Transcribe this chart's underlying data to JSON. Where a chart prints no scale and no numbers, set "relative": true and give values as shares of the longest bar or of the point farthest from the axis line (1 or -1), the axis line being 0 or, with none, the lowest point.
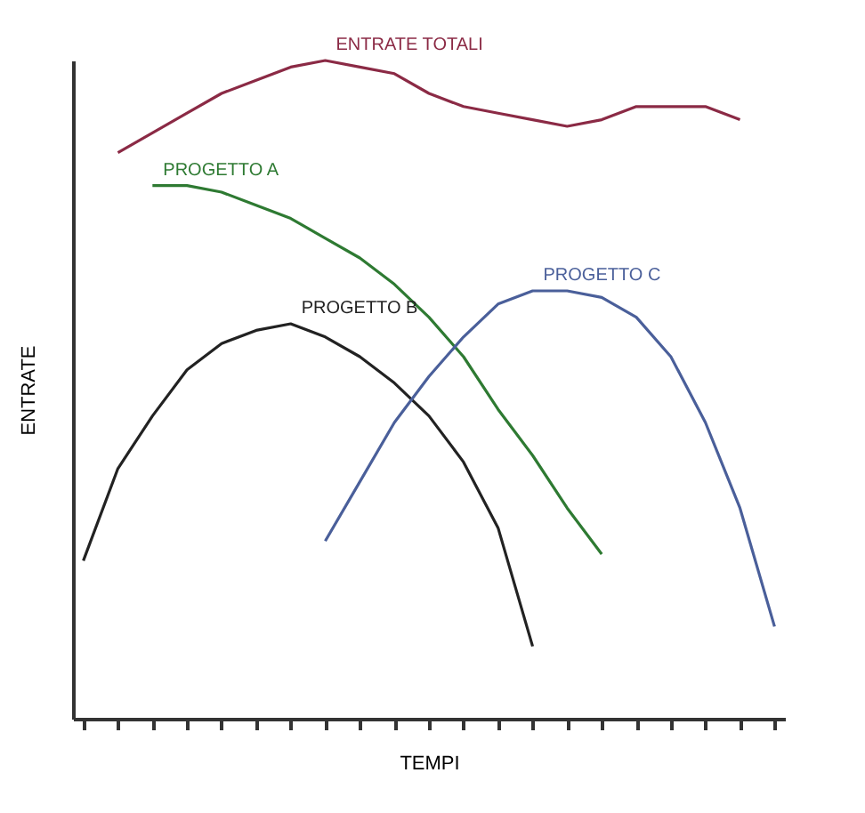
{
  "chart_data": {
    "type": "line",
    "relative": true,
    "xlabel": "TEMPI",
    "ylabel": "ENTRATE",
    "legend": false,
    "grid": false,
    "marker": "none",
    "line_style": "solid",
    "categories": [
      null,
      null,
      null,
      null,
      null,
      null,
      null,
      null,
      null,
      null,
      null,
      null,
      null,
      null,
      null,
      null,
      null,
      null,
      null,
      null,
      null
    ],
    "series": [
      {
        "name": "ENTRATE TOTALI",
        "color": "#8b2a45",
        "values": [
          null,
          0.86,
          0.89,
          0.92,
          0.95,
          0.97,
          0.99,
          1,
          0.99,
          0.98,
          0.95,
          0.93,
          0.92,
          0.91,
          0.9,
          0.91,
          0.93,
          0.93,
          0.93,
          0.91,
          null
        ]
      },
      {
        "name": "PROGETTO A",
        "color": "#2e7a32",
        "values": [
          null,
          null,
          0.81,
          0.81,
          0.8,
          0.78,
          0.76,
          0.73,
          0.7,
          0.66,
          0.61,
          0.55,
          0.47,
          0.4,
          0.32,
          0.25,
          null,
          null,
          null,
          null,
          null
        ]
      },
      {
        "name": "PROGETTO B",
        "color": "#222222",
        "values": [
          0.24,
          0.38,
          0.46,
          0.53,
          0.57,
          0.59,
          0.6,
          0.58,
          0.55,
          0.51,
          0.46,
          0.39,
          0.29,
          0.11,
          null,
          null,
          null,
          null,
          null,
          null,
          null
        ]
      },
      {
        "name": "PROGETTO C",
        "color": "#4a5f9a",
        "values": [
          null,
          null,
          null,
          null,
          null,
          null,
          null,
          0.27,
          0.36,
          0.45,
          0.52,
          0.58,
          0.63,
          0.65,
          0.65,
          0.64,
          0.61,
          0.55,
          0.45,
          0.32,
          0.14
        ]
      }
    ]
  }
}
